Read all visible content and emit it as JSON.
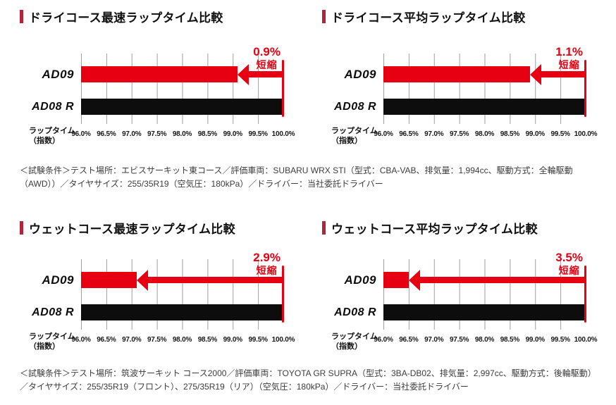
{
  "colors": {
    "brand_red": "#e60012",
    "bar_black": "#0d0d0d",
    "title_marker_red": "#b0253a",
    "gridline_gray": "#9e9e9e",
    "note_text": "#3c3c3c"
  },
  "axis": {
    "label": "ラップタイム（指数）",
    "label_lines": [
      "ラップタイム",
      "（指数）"
    ],
    "ticks": [
      "96.0%",
      "96.5%",
      "97.0%",
      "97.5%",
      "98.0%",
      "98.5%",
      "99.0%",
      "99.5%",
      "100.0%"
    ]
  },
  "chart_data": [
    {
      "type": "bar",
      "orientation": "horizontal",
      "title": "ドライコース最速ラップタイム比較",
      "categories": [
        "AD09",
        "AD08 R"
      ],
      "values": [
        99.1,
        100.0
      ],
      "bar_colors": [
        "#e60012",
        "#0d0d0d"
      ],
      "xlabel": "ラップタイム（指数）",
      "xlim": [
        96.0,
        100.0
      ],
      "tick_step": 0.5,
      "ticks": [
        "96.0%",
        "96.5%",
        "97.0%",
        "97.5%",
        "98.0%",
        "98.5%",
        "99.0%",
        "99.5%",
        "100.0%"
      ],
      "annotation": {
        "value": "0.9%",
        "label": "短縮"
      },
      "baseline": 100.0,
      "grid": true,
      "legend": "none"
    },
    {
      "type": "bar",
      "orientation": "horizontal",
      "title": "ドライコース平均ラップタイム比較",
      "categories": [
        "AD09",
        "AD08 R"
      ],
      "values": [
        98.9,
        100.0
      ],
      "bar_colors": [
        "#e60012",
        "#0d0d0d"
      ],
      "xlabel": "ラップタイム（指数）",
      "xlim": [
        96.0,
        100.0
      ],
      "tick_step": 0.5,
      "ticks": [
        "96.0%",
        "96.5%",
        "97.0%",
        "97.5%",
        "98.0%",
        "98.5%",
        "99.0%",
        "99.5%",
        "100.0%"
      ],
      "annotation": {
        "value": "1.1%",
        "label": "短縮"
      },
      "baseline": 100.0,
      "grid": true,
      "legend": "none"
    },
    {
      "type": "bar",
      "orientation": "horizontal",
      "title": "ウェットコース最速ラップタイム比較",
      "categories": [
        "AD09",
        "AD08 R"
      ],
      "values": [
        97.1,
        100.0
      ],
      "bar_colors": [
        "#e60012",
        "#0d0d0d"
      ],
      "xlabel": "ラップタイム（指数）",
      "xlim": [
        96.0,
        100.0
      ],
      "tick_step": 0.5,
      "ticks": [
        "96.0%",
        "96.5%",
        "97.0%",
        "97.5%",
        "98.0%",
        "98.5%",
        "99.0%",
        "99.5%",
        "100.0%"
      ],
      "annotation": {
        "value": "2.9%",
        "label": "短縮"
      },
      "baseline": 100.0,
      "grid": true,
      "legend": "none"
    },
    {
      "type": "bar",
      "orientation": "horizontal",
      "title": "ウェットコース平均ラップタイム比較",
      "categories": [
        "AD09",
        "AD08 R"
      ],
      "values": [
        96.5,
        100.0
      ],
      "bar_colors": [
        "#e60012",
        "#0d0d0d"
      ],
      "xlabel": "ラップタイム（指数）",
      "xlim": [
        96.0,
        100.0
      ],
      "tick_step": 0.5,
      "ticks": [
        "96.0%",
        "96.5%",
        "97.0%",
        "97.5%",
        "98.0%",
        "98.5%",
        "99.0%",
        "99.5%",
        "100.0%"
      ],
      "annotation": {
        "value": "3.5%",
        "label": "短縮"
      },
      "baseline": 100.0,
      "grid": true,
      "legend": "none"
    }
  ],
  "notes": [
    "＜試験条件＞テスト場所：エビスサーキット東コース／評価車両：SUBARU WRX STI（型式：CBA-VAB、排気量：1,994cc、駆動方式：全輪駆動（AWD））／タイヤサイズ：255/35R19（空気圧：180kPa）／ドライバー：当社委託ドライバー",
    "＜試験条件＞テスト場所：筑波サーキット コース2000／評価車両：TOYOTA GR SUPRA（型式：3BA-DB02、排気量：2,997cc、駆動方式：後輪駆動）／タイヤサイズ：255/35R19（フロント）、275/35R19（リア）（空気圧：180kPa）／ドライバー：当社委託ドライバー"
  ]
}
